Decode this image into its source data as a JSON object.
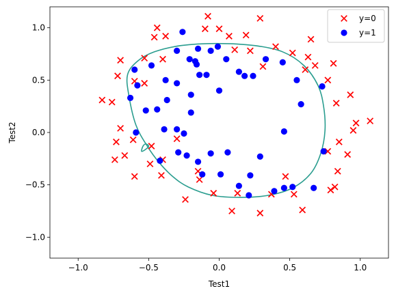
{
  "chart_data": {
    "type": "scatter",
    "xlabel": "Test1",
    "ylabel": "Test2",
    "xlim": [
      -1.2,
      1.2
    ],
    "ylim": [
      -1.2,
      1.2
    ],
    "xticks": [
      -1.0,
      -0.5,
      0.0,
      0.5,
      1.0
    ],
    "yticks": [
      -1.0,
      -0.5,
      0.0,
      0.5,
      1.0
    ],
    "tick_labels_x": [
      "−1.0",
      "−0.5",
      "0.0",
      "0.5",
      "1.0"
    ],
    "tick_labels_y": [
      "−1.0",
      "−0.5",
      "0.0",
      "0.5",
      "1.0"
    ],
    "grid": false,
    "legend_position": "top-right",
    "series": [
      {
        "name": "y=0",
        "marker": "x",
        "color": "#ff0000",
        "points": [
          [
            -0.08,
            1.11
          ],
          [
            0.29,
            1.09
          ],
          [
            -0.44,
            1.0
          ],
          [
            -0.1,
            0.99
          ],
          [
            0.0,
            0.99
          ],
          [
            -0.46,
            0.91
          ],
          [
            -0.38,
            0.92
          ],
          [
            0.07,
            0.92
          ],
          [
            0.19,
            0.93
          ],
          [
            0.65,
            0.89
          ],
          [
            0.4,
            0.82
          ],
          [
            0.11,
            0.79
          ],
          [
            0.22,
            0.78
          ],
          [
            0.52,
            0.76
          ],
          [
            0.63,
            0.72
          ],
          [
            -0.53,
            0.71
          ],
          [
            -0.4,
            0.7
          ],
          [
            -0.7,
            0.69
          ],
          [
            0.81,
            0.66
          ],
          [
            0.68,
            0.64
          ],
          [
            0.31,
            0.63
          ],
          [
            0.61,
            0.6
          ],
          [
            -0.72,
            0.54
          ],
          [
            0.77,
            0.5
          ],
          [
            -0.6,
            0.49
          ],
          [
            -0.53,
            0.47
          ],
          [
            0.93,
            0.36
          ],
          [
            -0.83,
            0.31
          ],
          [
            -0.76,
            0.29
          ],
          [
            0.83,
            0.28
          ],
          [
            1.07,
            0.11
          ],
          [
            0.97,
            0.09
          ],
          [
            -0.7,
            0.04
          ],
          [
            0.95,
            0.02
          ],
          [
            -0.61,
            -0.07
          ],
          [
            -0.73,
            -0.09
          ],
          [
            0.85,
            -0.09
          ],
          [
            -0.48,
            -0.13
          ],
          [
            -0.3,
            -0.06
          ],
          [
            0.77,
            -0.18
          ],
          [
            0.91,
            -0.21
          ],
          [
            -0.67,
            -0.22
          ],
          [
            -0.74,
            -0.26
          ],
          [
            -0.4,
            -0.26
          ],
          [
            -0.49,
            -0.3
          ],
          [
            0.84,
            -0.37
          ],
          [
            -0.15,
            -0.37
          ],
          [
            -0.6,
            -0.42
          ],
          [
            -0.41,
            -0.41
          ],
          [
            0.47,
            -0.42
          ],
          [
            -0.14,
            -0.45
          ],
          [
            0.82,
            -0.52
          ],
          [
            0.79,
            -0.55
          ],
          [
            0.13,
            -0.58
          ],
          [
            0.37,
            -0.59
          ],
          [
            0.53,
            -0.59
          ],
          [
            -0.04,
            -0.58
          ],
          [
            -0.24,
            -0.64
          ],
          [
            0.09,
            -0.75
          ],
          [
            0.29,
            -0.77
          ],
          [
            0.59,
            -0.74
          ]
        ]
      },
      {
        "name": "y=1",
        "marker": "o",
        "color": "#0000ff",
        "points": [
          [
            -0.26,
            0.96
          ],
          [
            -0.3,
            0.78
          ],
          [
            -0.15,
            0.8
          ],
          [
            -0.01,
            0.82
          ],
          [
            -0.06,
            0.78
          ],
          [
            0.05,
            0.7
          ],
          [
            0.33,
            0.7
          ],
          [
            0.45,
            0.67
          ],
          [
            -0.21,
            0.7
          ],
          [
            -0.17,
            0.68
          ],
          [
            -0.16,
            0.65
          ],
          [
            -0.48,
            0.64
          ],
          [
            -0.6,
            0.6
          ],
          [
            0.14,
            0.58
          ],
          [
            0.18,
            0.54
          ],
          [
            0.24,
            0.54
          ],
          [
            -0.14,
            0.55
          ],
          [
            -0.09,
            0.55
          ],
          [
            0.55,
            0.5
          ],
          [
            -0.38,
            0.5
          ],
          [
            -0.3,
            0.47
          ],
          [
            0.73,
            0.44
          ],
          [
            0.0,
            0.4
          ],
          [
            -0.2,
            0.36
          ],
          [
            -0.58,
            0.45
          ],
          [
            -0.37,
            0.31
          ],
          [
            -0.63,
            0.33
          ],
          [
            0.58,
            0.27
          ],
          [
            -0.52,
            0.21
          ],
          [
            -0.44,
            0.22
          ],
          [
            -0.2,
            0.19
          ],
          [
            -0.39,
            0.03
          ],
          [
            -0.3,
            0.03
          ],
          [
            0.46,
            0.01
          ],
          [
            -0.59,
            0.0
          ],
          [
            -0.25,
            -0.01
          ],
          [
            -0.42,
            -0.27
          ],
          [
            -0.29,
            -0.19
          ],
          [
            -0.23,
            -0.22
          ],
          [
            -0.15,
            -0.28
          ],
          [
            -0.06,
            -0.2
          ],
          [
            0.06,
            -0.19
          ],
          [
            0.74,
            -0.18
          ],
          [
            0.29,
            -0.23
          ],
          [
            -0.12,
            -0.4
          ],
          [
            0.01,
            -0.4
          ],
          [
            0.22,
            -0.41
          ],
          [
            0.14,
            -0.51
          ],
          [
            0.39,
            -0.56
          ],
          [
            0.46,
            -0.53
          ],
          [
            0.52,
            -0.52
          ],
          [
            0.67,
            -0.53
          ],
          [
            0.21,
            -0.6
          ]
        ]
      }
    ],
    "decision_boundary": {
      "color": "#2a9d8f",
      "contours": [
        [
          [
            -0.02,
            0.85
          ],
          [
            0.25,
            0.83
          ],
          [
            0.45,
            0.77
          ],
          [
            0.6,
            0.64
          ],
          [
            0.7,
            0.45
          ],
          [
            0.74,
            0.25
          ],
          [
            0.75,
            0.02
          ],
          [
            0.72,
            -0.2
          ],
          [
            0.65,
            -0.39
          ],
          [
            0.52,
            -0.53
          ],
          [
            0.35,
            -0.6
          ],
          [
            0.15,
            -0.62
          ],
          [
            -0.05,
            -0.6
          ],
          [
            -0.22,
            -0.52
          ],
          [
            -0.33,
            -0.42
          ],
          [
            -0.43,
            -0.28
          ],
          [
            -0.51,
            -0.13
          ],
          [
            -0.59,
            0.07
          ],
          [
            -0.64,
            0.35
          ],
          [
            -0.65,
            0.55
          ],
          [
            -0.58,
            0.68
          ],
          [
            -0.46,
            0.77
          ],
          [
            -0.27,
            0.83
          ]
        ],
        [
          [
            -0.55,
            -0.18
          ],
          [
            -0.52,
            -0.16
          ],
          [
            -0.5,
            -0.13
          ],
          [
            -0.52,
            -0.11
          ],
          [
            -0.54,
            -0.13
          ]
        ]
      ]
    },
    "legend": [
      {
        "label": "y=0",
        "marker": "x",
        "color": "#ff0000"
      },
      {
        "label": "y=1",
        "marker": "o",
        "color": "#0000ff"
      }
    ]
  }
}
